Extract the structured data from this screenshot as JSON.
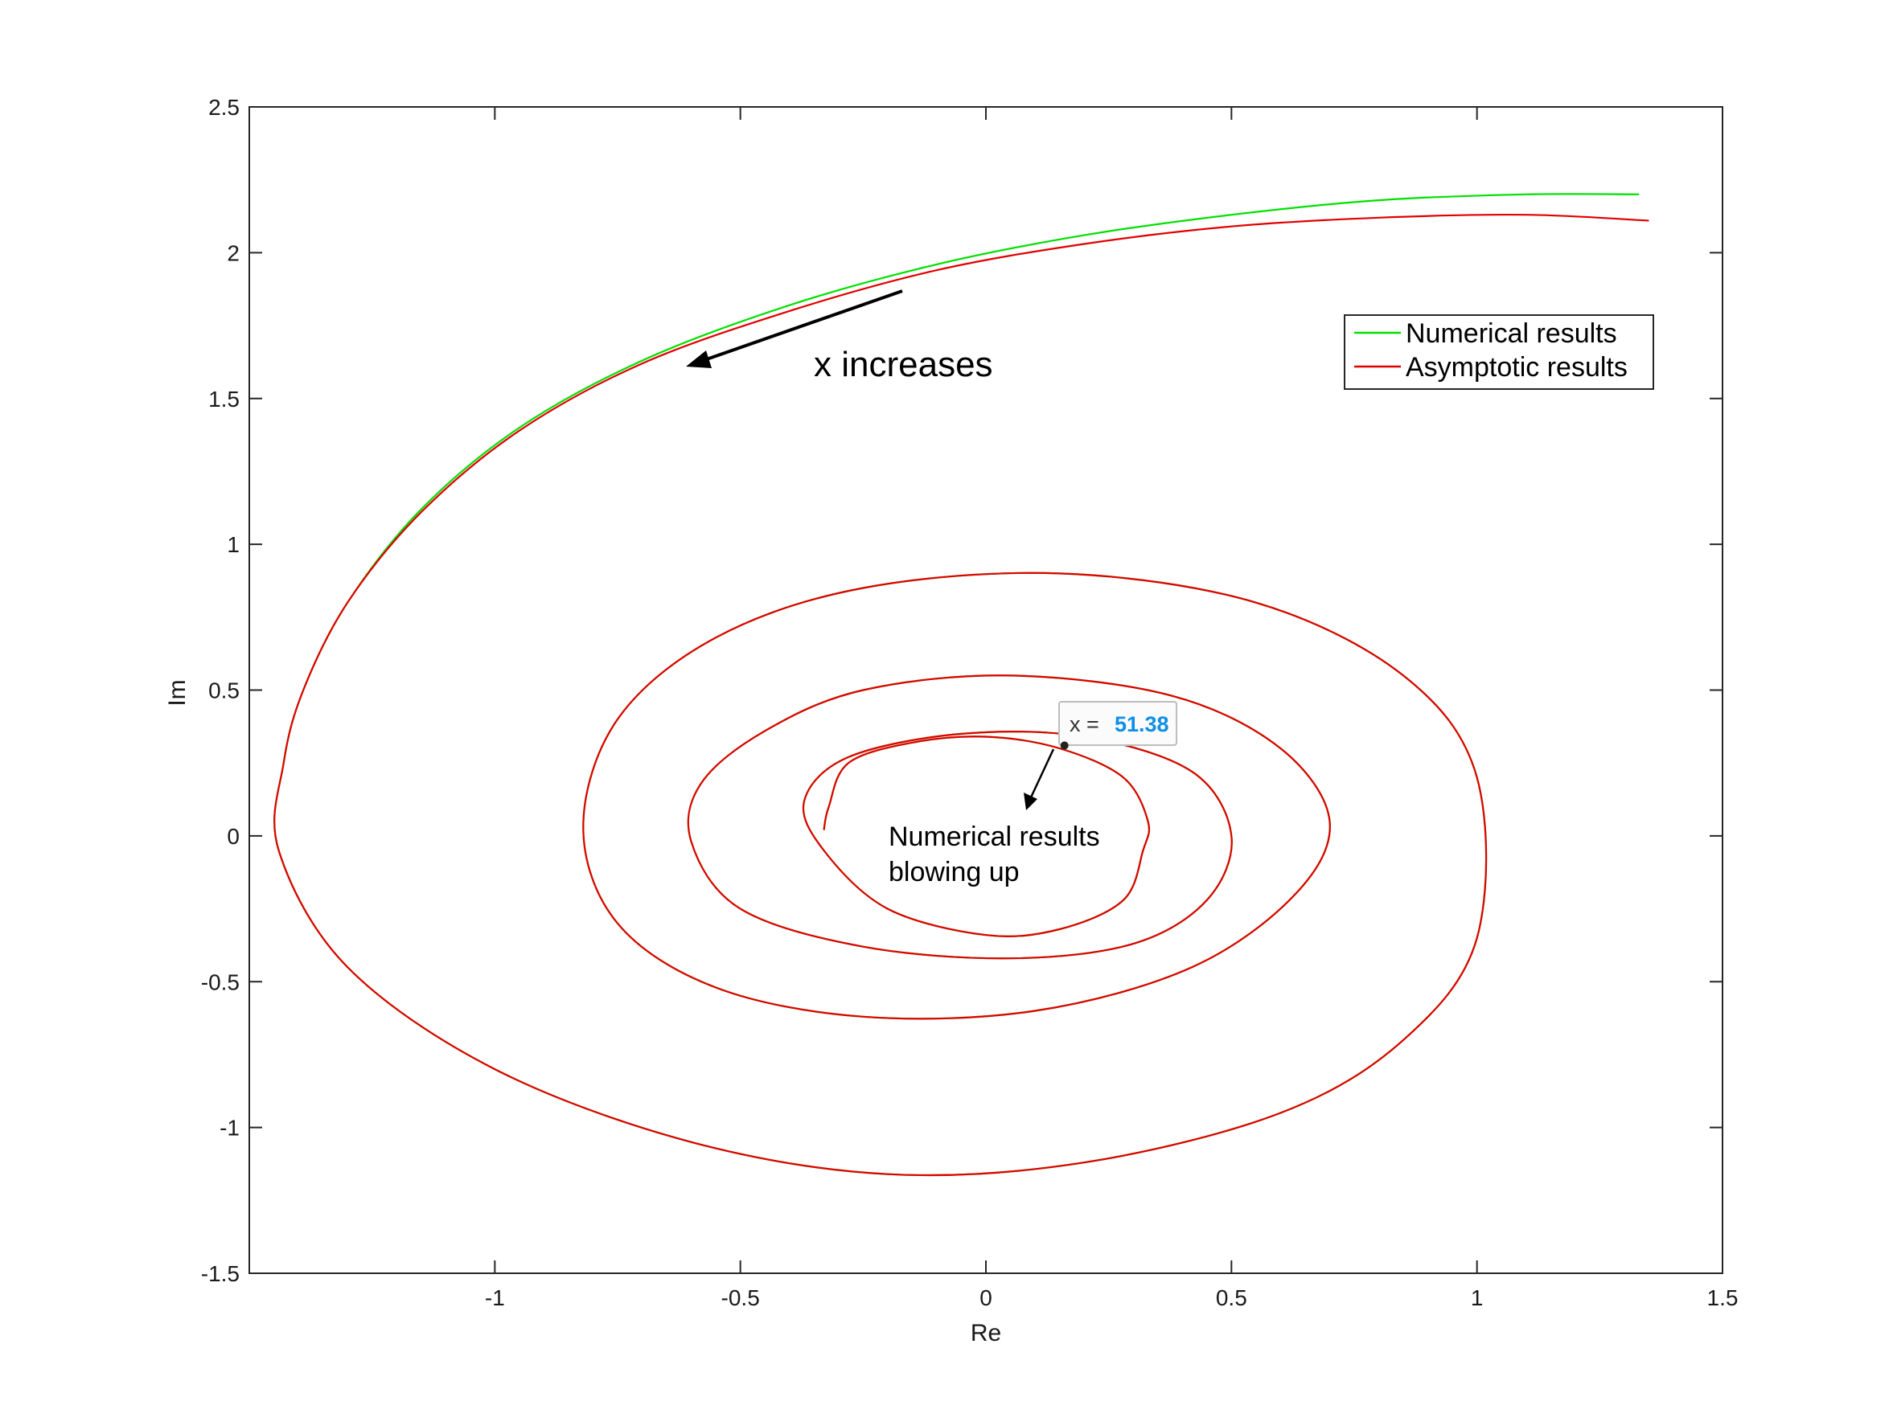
{
  "chart_data": {
    "type": "line",
    "title": "",
    "xlabel": "Re",
    "ylabel": "Im",
    "xlim": [
      -1.5,
      1.5
    ],
    "ylim": [
      -1.5,
      2.5
    ],
    "xticks": [
      -1,
      -0.5,
      0,
      0.5,
      1,
      1.5
    ],
    "xtick_labels": [
      "-1",
      "-0.5",
      "0",
      "0.5",
      "1",
      "1.5"
    ],
    "yticks": [
      -1.5,
      -1,
      -0.5,
      0,
      0.5,
      1,
      1.5,
      2,
      2.5
    ],
    "ytick_labels": [
      "-1.5",
      "-1",
      "-0.5",
      "0",
      "0.5",
      "1",
      "1.5",
      "2",
      "2.5"
    ],
    "grid": false,
    "legend_position": "top-right",
    "series": [
      {
        "name": "Numerical results",
        "color": "#00e000",
        "x": [
          1.33,
          1.1,
          0.8,
          0.5,
          0.2,
          -0.1,
          -0.4,
          -0.7,
          -0.95,
          -1.15,
          -1.3,
          -1.39,
          -1.43,
          -1.44,
          -1.3,
          -1.0,
          -0.6,
          -0.2,
          0.2,
          0.6,
          0.85,
          1.0,
          1.0,
          0.85,
          0.55,
          0.15,
          -0.25,
          -0.55,
          -0.75,
          -0.82,
          -0.75,
          -0.55,
          -0.25,
          0.1,
          0.42,
          0.63,
          0.7,
          0.6,
          0.38,
          0.05,
          -0.25,
          -0.45,
          -0.58,
          -0.6,
          -0.5,
          -0.25,
          0.05,
          0.3,
          0.45,
          0.5,
          0.42,
          0.2,
          -0.05,
          -0.28,
          -0.37,
          -0.33,
          -0.2,
          0.0,
          0.15,
          0.28,
          0.32,
          0.33,
          0.28,
          0.15,
          0.0,
          -0.15,
          -0.28,
          -0.32,
          -0.33
        ],
        "y": [
          2.2,
          2.2,
          2.18,
          2.13,
          2.06,
          1.96,
          1.82,
          1.63,
          1.4,
          1.12,
          0.8,
          0.5,
          0.25,
          -0.05,
          -0.45,
          -0.8,
          -1.05,
          -1.16,
          -1.12,
          -0.95,
          -0.7,
          -0.35,
          0.2,
          0.55,
          0.8,
          0.9,
          0.85,
          0.68,
          0.4,
          0.03,
          -0.3,
          -0.52,
          -0.62,
          -0.6,
          -0.45,
          -0.2,
          0.05,
          0.3,
          0.48,
          0.55,
          0.5,
          0.36,
          0.18,
          -0.02,
          -0.25,
          -0.38,
          -0.42,
          -0.37,
          -0.22,
          0.0,
          0.22,
          0.34,
          0.35,
          0.27,
          0.12,
          -0.05,
          -0.25,
          -0.34,
          -0.32,
          -0.22,
          -0.05,
          0.05,
          0.2,
          0.3,
          0.34,
          0.32,
          0.25,
          0.1,
          0.02
        ]
      },
      {
        "name": "Asymptotic results",
        "color": "#e00000",
        "x": [
          1.35,
          1.1,
          0.8,
          0.5,
          0.2,
          -0.1,
          -0.4,
          -0.7,
          -0.95,
          -1.15,
          -1.3,
          -1.39,
          -1.43,
          -1.44,
          -1.3,
          -1.0,
          -0.6,
          -0.2,
          0.2,
          0.6,
          0.85,
          1.0,
          1.0,
          0.85,
          0.55,
          0.15,
          -0.25,
          -0.55,
          -0.75,
          -0.82,
          -0.75,
          -0.55,
          -0.25,
          0.1,
          0.42,
          0.63,
          0.7,
          0.6,
          0.38,
          0.05,
          -0.25,
          -0.45,
          -0.58,
          -0.6,
          -0.5,
          -0.25,
          0.05,
          0.3,
          0.45,
          0.5,
          0.42,
          0.2,
          -0.05,
          -0.28,
          -0.37,
          -0.33,
          -0.2,
          0.0,
          0.15,
          0.28,
          0.32,
          0.33,
          0.28,
          0.15,
          0.0,
          -0.15,
          -0.28,
          -0.32,
          -0.33
        ],
        "y": [
          2.11,
          2.13,
          2.12,
          2.09,
          2.03,
          1.94,
          1.8,
          1.62,
          1.39,
          1.11,
          0.8,
          0.5,
          0.25,
          -0.05,
          -0.45,
          -0.8,
          -1.05,
          -1.16,
          -1.12,
          -0.95,
          -0.7,
          -0.35,
          0.2,
          0.55,
          0.8,
          0.9,
          0.85,
          0.68,
          0.4,
          0.03,
          -0.3,
          -0.52,
          -0.62,
          -0.6,
          -0.45,
          -0.2,
          0.05,
          0.3,
          0.48,
          0.55,
          0.5,
          0.36,
          0.18,
          -0.02,
          -0.25,
          -0.38,
          -0.42,
          -0.37,
          -0.22,
          0.0,
          0.22,
          0.34,
          0.35,
          0.27,
          0.12,
          -0.05,
          -0.25,
          -0.34,
          -0.32,
          -0.22,
          -0.05,
          0.05,
          0.2,
          0.3,
          0.34,
          0.32,
          0.25,
          0.1,
          0.02
        ]
      }
    ],
    "annotations": {
      "direction_text": "x increases",
      "blowup_line1": "Numerical results",
      "blowup_line2": "blowing up",
      "datatip_label": "x =",
      "datatip_value": "51.38",
      "datatip_point": [
        0.16,
        0.31
      ]
    }
  }
}
